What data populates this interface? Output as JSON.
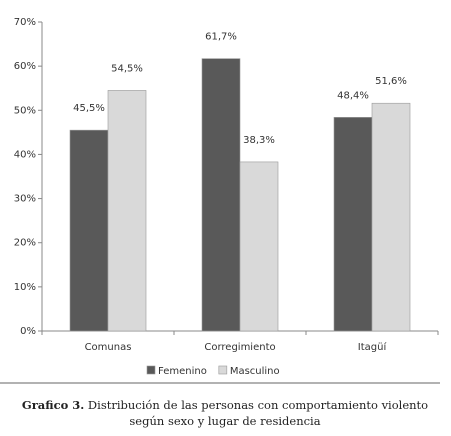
{
  "chart_data": {
    "type": "bar",
    "categories": [
      "Comunas",
      "Corregimiento",
      "Itagüí"
    ],
    "series": [
      {
        "name": "Femenino",
        "color": "#595959",
        "values": [
          45.5,
          61.7,
          48.4
        ],
        "value_labels": [
          "45,5%",
          "61,7%",
          "48,4%"
        ]
      },
      {
        "name": "Masculino",
        "color": "#d9d9d9",
        "values": [
          54.5,
          38.3,
          51.6
        ],
        "value_labels": [
          "54,5%",
          "38,3%",
          "51,6%"
        ]
      }
    ],
    "ylim": [
      0,
      70
    ],
    "yticks": [
      {
        "value": 0,
        "label": "0%"
      },
      {
        "value": 10,
        "label": "10%"
      },
      {
        "value": 20,
        "label": "20%"
      },
      {
        "value": 30,
        "label": "30%"
      },
      {
        "value": 40,
        "label": "40%"
      },
      {
        "value": 50,
        "label": "50%"
      },
      {
        "value": 60,
        "label": "60%"
      },
      {
        "value": 70,
        "label": "70%"
      }
    ],
    "grid": false,
    "legend": "bottom"
  },
  "caption": {
    "label": "Grafico 3.",
    "lines": [
      "Distribución de las personas con comportamiento violento",
      "según sexo y lugar de residencia"
    ]
  }
}
